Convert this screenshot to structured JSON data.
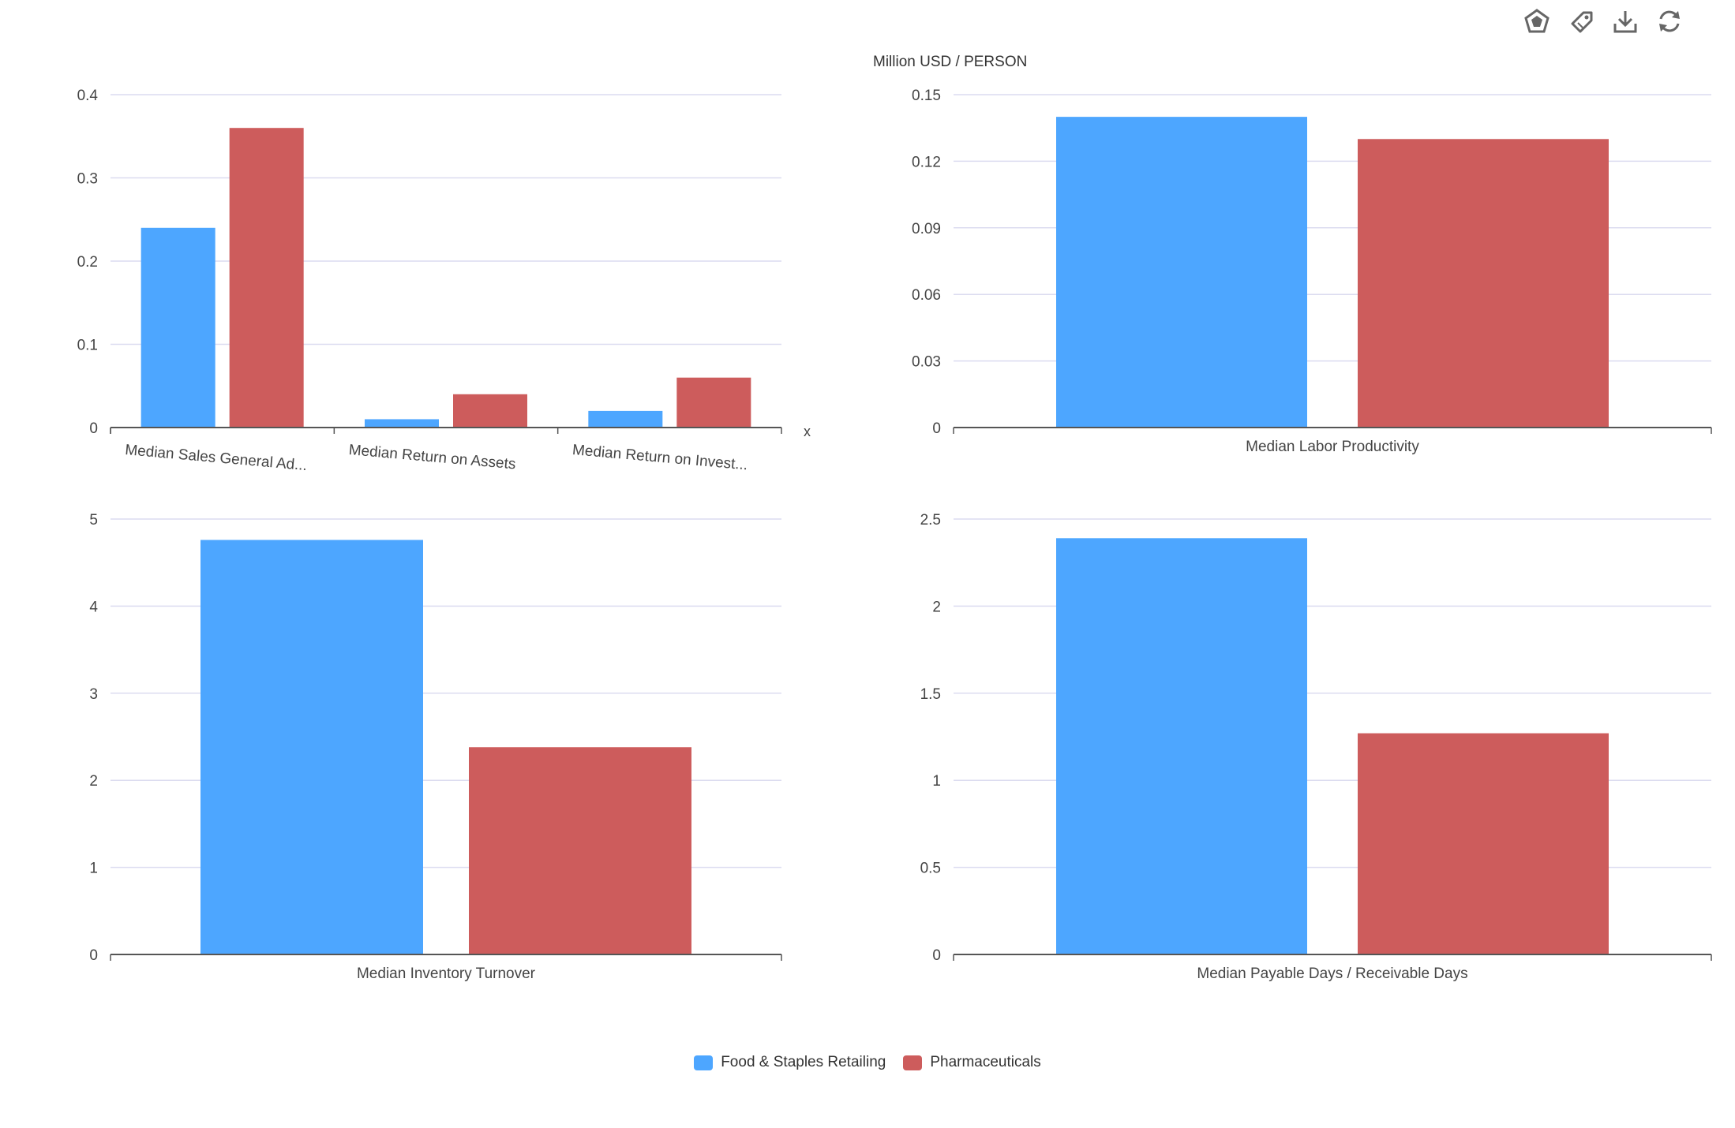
{
  "unit_label": "Million USD / PERSON",
  "x_axis_marker": "x",
  "toolbar": {
    "items": [
      {
        "name": "radar-chart-icon"
      },
      {
        "name": "tag-icon"
      },
      {
        "name": "download-icon"
      },
      {
        "name": "refresh-icon"
      }
    ]
  },
  "colors": {
    "food": "#4da6ff",
    "pharma": "#cd5c5c",
    "axis": "#555555",
    "grid": "#dcdcf0",
    "text": "#444444"
  },
  "legend": {
    "items": [
      {
        "label": "Food & Staples Retailing",
        "color": "#4da6ff"
      },
      {
        "label": "Pharmaceuticals",
        "color": "#cd5c5c"
      }
    ]
  },
  "chart_data": [
    {
      "type": "bar",
      "categories": [
        "Median Sales General Ad...",
        "Median Return on Assets",
        "Median Return on Invest..."
      ],
      "series": [
        {
          "name": "Food & Staples Retailing",
          "values": [
            0.24,
            0.01,
            0.02
          ]
        },
        {
          "name": "Pharmaceuticals",
          "values": [
            0.36,
            0.04,
            0.06
          ]
        }
      ],
      "yticks": [
        "0",
        "0.1",
        "0.2",
        "0.3",
        "0.4"
      ],
      "ylim": [
        0,
        0.4
      ],
      "rotated_labels": true,
      "grid": true
    },
    {
      "type": "bar",
      "categories": [
        "Median Labor Productivity"
      ],
      "series": [
        {
          "name": "Food & Staples Retailing",
          "values": [
            0.14
          ]
        },
        {
          "name": "Pharmaceuticals",
          "values": [
            0.13
          ]
        }
      ],
      "yticks": [
        "0",
        "0.03",
        "0.06",
        "0.09",
        "0.12",
        "0.15"
      ],
      "ylim": [
        0,
        0.15
      ],
      "ylabel": "Million USD / PERSON",
      "grid": true
    },
    {
      "type": "bar",
      "categories": [
        "Median Inventory Turnover"
      ],
      "series": [
        {
          "name": "Food & Staples Retailing",
          "values": [
            4.76
          ]
        },
        {
          "name": "Pharmaceuticals",
          "values": [
            2.38
          ]
        }
      ],
      "yticks": [
        "0",
        "1",
        "2",
        "3",
        "4",
        "5"
      ],
      "ylim": [
        0,
        5
      ],
      "grid": true
    },
    {
      "type": "bar",
      "categories": [
        "Median Payable Days / Receivable Days"
      ],
      "series": [
        {
          "name": "Food & Staples Retailing",
          "values": [
            2.39
          ]
        },
        {
          "name": "Pharmaceuticals",
          "values": [
            1.27
          ]
        }
      ],
      "yticks": [
        "0",
        "0.5",
        "1",
        "1.5",
        "2",
        "2.5"
      ],
      "ylim": [
        0,
        2.5
      ],
      "grid": true
    }
  ]
}
